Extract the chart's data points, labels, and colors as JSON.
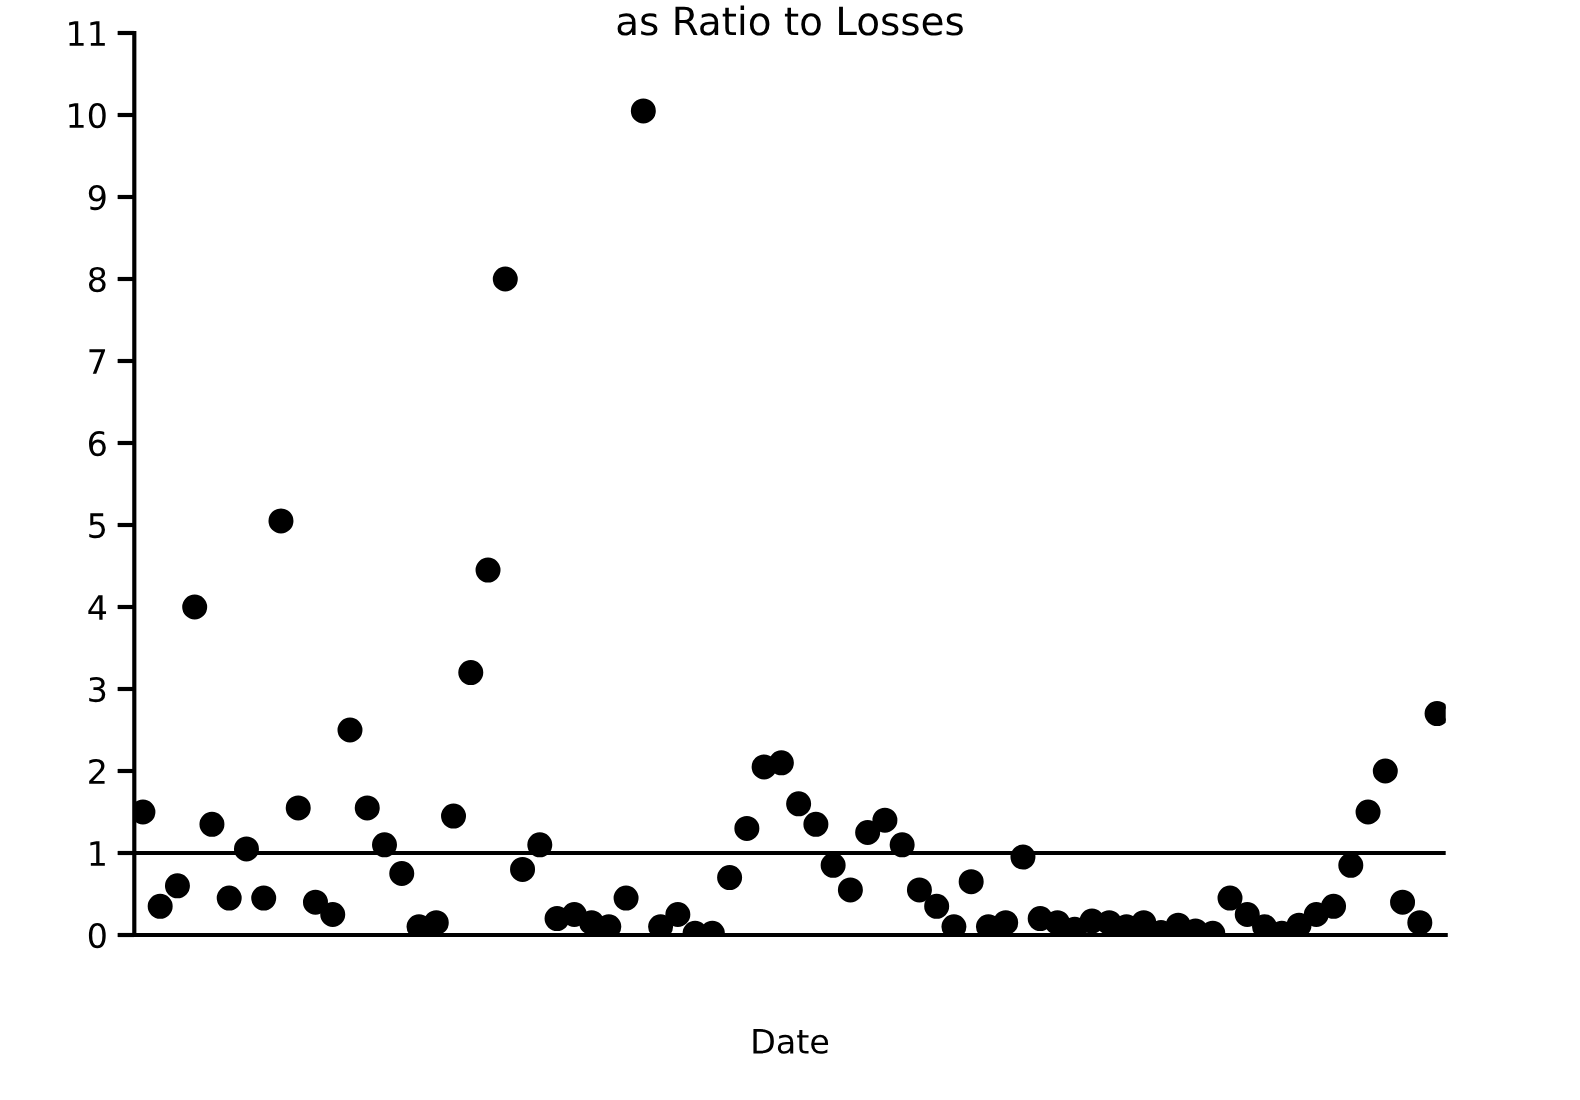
{
  "chart_data": {
    "type": "scatter",
    "title": "as Ratio to Losses",
    "xlabel": "Date",
    "categories": [
      null,
      null,
      null,
      null,
      null,
      null,
      null,
      null,
      null,
      null,
      null,
      null,
      null,
      null,
      null,
      null,
      null,
      null,
      null,
      null,
      null,
      null,
      null,
      null,
      null,
      null,
      null,
      null,
      null,
      null,
      null,
      null,
      null,
      null,
      null,
      null,
      null,
      null,
      null,
      null,
      null,
      null,
      null,
      null,
      null,
      null,
      null,
      null,
      null,
      null,
      null,
      null,
      null,
      null,
      null,
      null,
      null,
      null,
      null,
      null,
      null,
      null,
      null,
      null,
      null,
      null,
      null,
      null,
      null,
      null,
      null,
      null,
      null,
      null,
      null,
      null
    ],
    "series": [
      {
        "color": "#000000",
        "values": [
          1.5,
          0.35,
          0.6,
          4.0,
          1.35,
          0.45,
          1.05,
          0.45,
          5.05,
          1.55,
          0.4,
          0.25,
          2.5,
          1.55,
          1.1,
          0.75,
          0.1,
          0.15,
          1.45,
          3.2,
          4.45,
          8.0,
          0.8,
          1.1,
          0.2,
          0.25,
          0.15,
          0.1,
          0.45,
          10.05,
          0.1,
          0.25,
          0.02,
          0.02,
          0.7,
          1.3,
          2.05,
          2.1,
          1.6,
          1.35,
          0.85,
          0.55,
          1.25,
          1.4,
          1.1,
          0.55,
          0.35,
          0.1,
          0.65,
          0.1,
          0.15,
          0.95,
          0.2,
          0.15,
          0.07,
          0.17,
          0.15,
          0.1,
          0.15,
          0.03,
          0.12,
          0.05,
          0.02,
          0.45,
          0.25,
          0.1,
          0.02,
          0.12,
          0.25,
          0.35,
          0.85,
          1.5,
          2.0,
          0.4,
          0.15,
          2.7
        ]
      }
    ],
    "ylim": [
      0,
      11
    ],
    "yticks": [
      0,
      1,
      2,
      3,
      4,
      5,
      6,
      7,
      8,
      9,
      10,
      11
    ],
    "grid": false,
    "legend": false,
    "marker": "circle",
    "ref_lines": [
      {
        "axis": "y",
        "value": 1,
        "color": "#000000"
      }
    ]
  }
}
